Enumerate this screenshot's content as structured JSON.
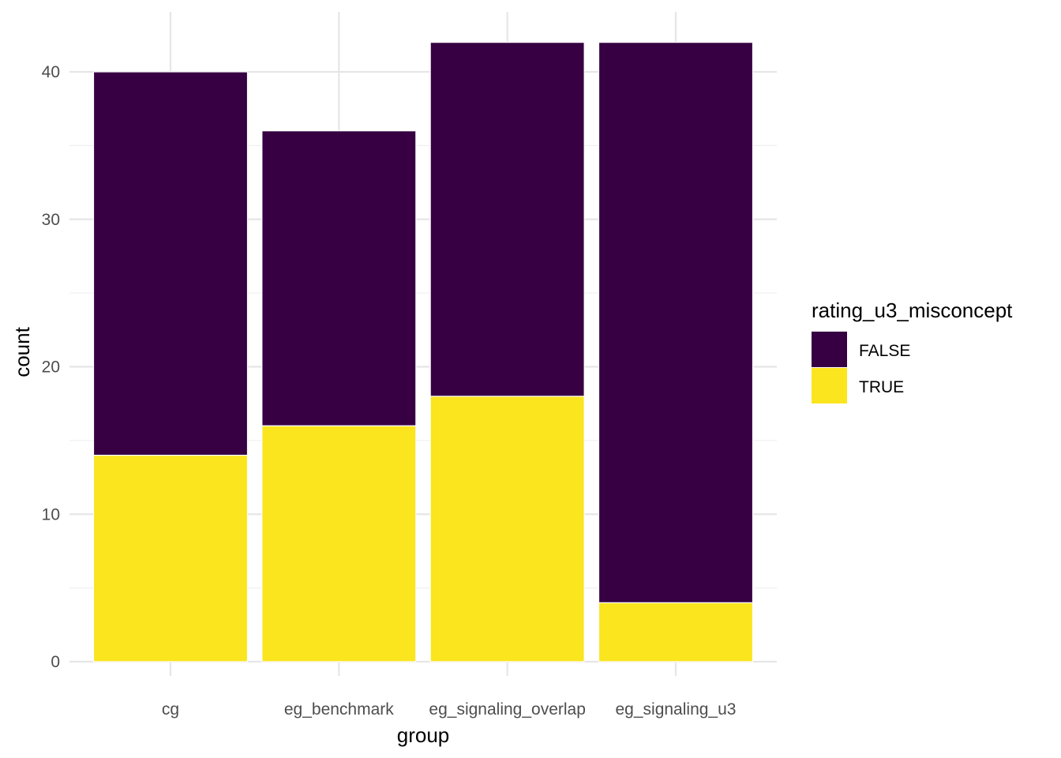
{
  "chart_data": {
    "type": "bar",
    "stacked": true,
    "categories": [
      "cg",
      "eg_benchmark",
      "eg_signaling_overlap",
      "eg_signaling_u3"
    ],
    "series": [
      {
        "name": "FALSE",
        "values": [
          26,
          20,
          24,
          38
        ],
        "color": "#360042"
      },
      {
        "name": "TRUE",
        "values": [
          14,
          16,
          18,
          4
        ],
        "color": "#FAE51E"
      }
    ],
    "xlabel": "group",
    "ylabel": "count",
    "ylim": [
      0,
      43
    ],
    "yticks": [
      0,
      10,
      20,
      30,
      40
    ],
    "grid": true,
    "legend": {
      "title": "rating_u3_misconcept",
      "position": "right"
    }
  }
}
